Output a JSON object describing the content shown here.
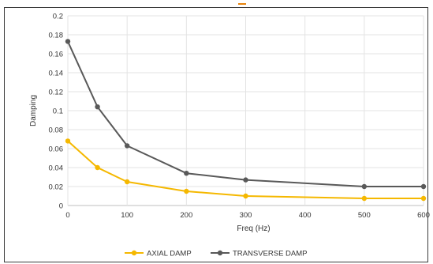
{
  "chart_data": {
    "type": "line",
    "xlabel": "Freq (Hz)",
    "ylabel": "Damping",
    "x": [
      0,
      50,
      100,
      200,
      300,
      500,
      600
    ],
    "x_ticks": [
      "0",
      "100",
      "200",
      "300",
      "400",
      "500",
      "600"
    ],
    "x_tick_values": [
      0,
      100,
      200,
      300,
      400,
      500,
      600
    ],
    "y_ticks": [
      "0",
      "0.02",
      "0.04",
      "0.06",
      "0.08",
      "0.1",
      "0.12",
      "0.14",
      "0.16",
      "0.18",
      "0.2"
    ],
    "y_tick_values": [
      0,
      0.02,
      0.04,
      0.06,
      0.08,
      0.1,
      0.12,
      0.14,
      0.16,
      0.18,
      0.2
    ],
    "xlim": [
      0,
      600
    ],
    "ylim": [
      0,
      0.2
    ],
    "grid": true,
    "legend_position": "bottom",
    "series": [
      {
        "name": "AXIAL DAMP",
        "color": "#f5b800",
        "values": [
          0.068,
          0.04,
          0.025,
          0.015,
          0.01,
          0.0075,
          0.0075
        ]
      },
      {
        "name": "TRANSVERSE DAMP",
        "color": "#595959",
        "values": [
          0.173,
          0.104,
          0.063,
          0.034,
          0.027,
          0.02,
          0.02
        ]
      }
    ]
  }
}
